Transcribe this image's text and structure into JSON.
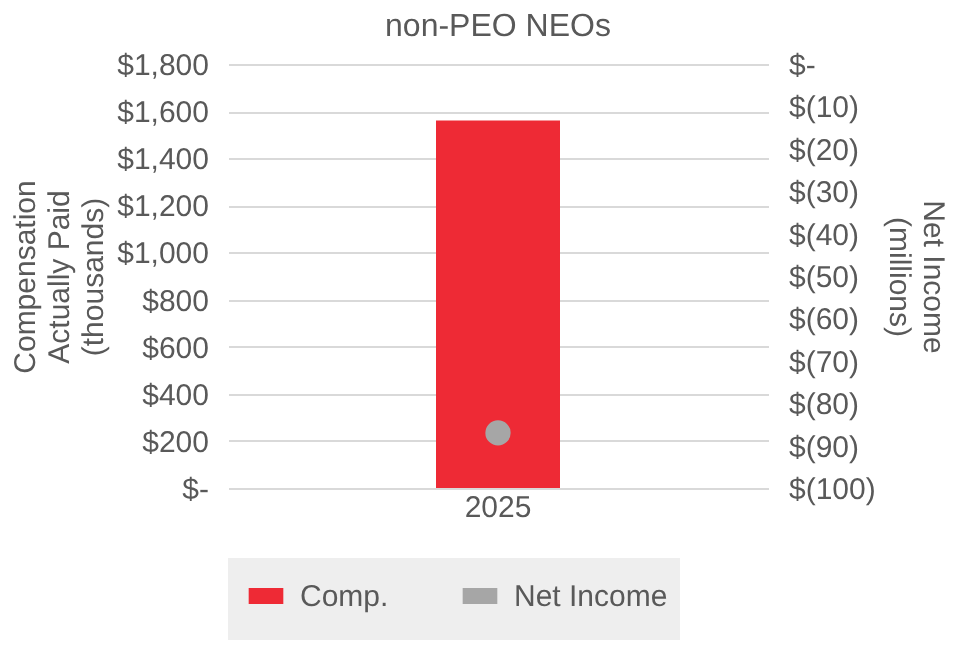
{
  "chart_data": {
    "type": "bar",
    "title": "non-PEO NEOs",
    "ylabel": "Compensation\nActually Paid\n(thousands)",
    "y2label": "Net Income\n(millions)",
    "categories": [
      "2025"
    ],
    "series": [
      {
        "name": "Comp.",
        "color": "#ee2a35",
        "values": [
          1560
        ]
      },
      {
        "name": "Net Income",
        "color": "#a6a6a6",
        "values": [
          -87
        ],
        "type": "line",
        "axis": "y2",
        "marker": "circle"
      }
    ],
    "ylim": [
      0,
      1800
    ],
    "yticks": [
      {
        "value": 0,
        "label": "$-"
      },
      {
        "value": 200,
        "label": "$200"
      },
      {
        "value": 400,
        "label": "$400"
      },
      {
        "value": 600,
        "label": "$600"
      },
      {
        "value": 800,
        "label": "$800"
      },
      {
        "value": 1000,
        "label": "$1,000"
      },
      {
        "value": 1200,
        "label": "$1,200"
      },
      {
        "value": 1400,
        "label": "$1,400"
      },
      {
        "value": 1600,
        "label": "$1,600"
      },
      {
        "value": 1800,
        "label": "$1,800"
      }
    ],
    "y2lim": [
      -100,
      0
    ],
    "y2ticks": [
      {
        "value": -100,
        "label": "$(100)"
      },
      {
        "value": -90,
        "label": "$(90)"
      },
      {
        "value": -80,
        "label": "$(80)"
      },
      {
        "value": -70,
        "label": "$(70)"
      },
      {
        "value": -60,
        "label": "$(60)"
      },
      {
        "value": -50,
        "label": "$(50)"
      },
      {
        "value": -40,
        "label": "$(40)"
      },
      {
        "value": -30,
        "label": "$(30)"
      },
      {
        "value": -20,
        "label": "$(20)"
      },
      {
        "value": -10,
        "label": "$(10)"
      },
      {
        "value": 0,
        "label": "$-"
      }
    ],
    "grid": "y",
    "legend": "bottom"
  }
}
